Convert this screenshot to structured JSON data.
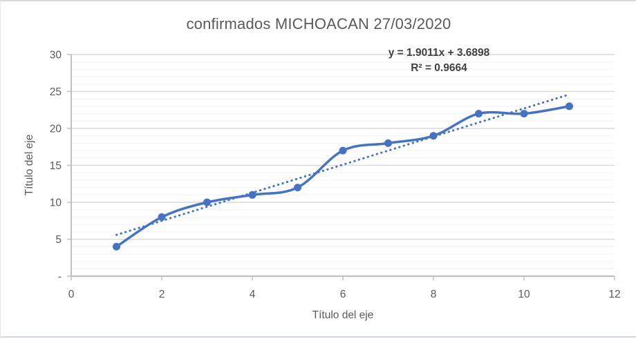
{
  "chart": {
    "title": "confirmados MICHOACAN 27/03/2020",
    "trendline_equation": "y = 1.9011x + 3.6898",
    "trendline_r2": "R² = 0.9664"
  },
  "chart_data": {
    "type": "line",
    "title": "confirmados MICHOACAN 27/03/2020",
    "x": [
      1,
      2,
      3,
      4,
      5,
      6,
      7,
      8,
      9,
      10,
      11
    ],
    "y": [
      4,
      8,
      10,
      11,
      12,
      17,
      18,
      19,
      22,
      22,
      23
    ],
    "xlabel": "Título del eje",
    "ylabel": "Título del eje",
    "xlim": [
      0,
      12
    ],
    "ylim": [
      0,
      30
    ],
    "x_tick_values": [
      0,
      2,
      4,
      6,
      8,
      10,
      12
    ],
    "x_tick_labels": [
      "0",
      "2",
      "4",
      "6",
      "8",
      "10",
      "12"
    ],
    "y_tick_values": [
      0,
      5,
      10,
      15,
      20,
      25,
      30
    ],
    "y_tick_labels": [
      "-",
      "5",
      "10",
      "15",
      "20",
      "25",
      "30"
    ],
    "minor_grid_step": 1,
    "major_grid_step": 5,
    "grid": "horizontal-only",
    "legend": "none",
    "line_smooth": true,
    "trendline": {
      "slope": 1.9011,
      "intercept": 3.6898,
      "r_squared": 0.9664,
      "x_start": 1,
      "x_end": 11,
      "style": "dotted"
    },
    "colors": {
      "series": "#4472C4",
      "trendline": "#4472C4",
      "major_grid": "#d9d9d9",
      "minor_grid": "#f2f2f2",
      "axis_line": "#bfbfbf",
      "tick_text": "#595959",
      "title_text": "#595959",
      "equation_text": "#404040"
    }
  }
}
